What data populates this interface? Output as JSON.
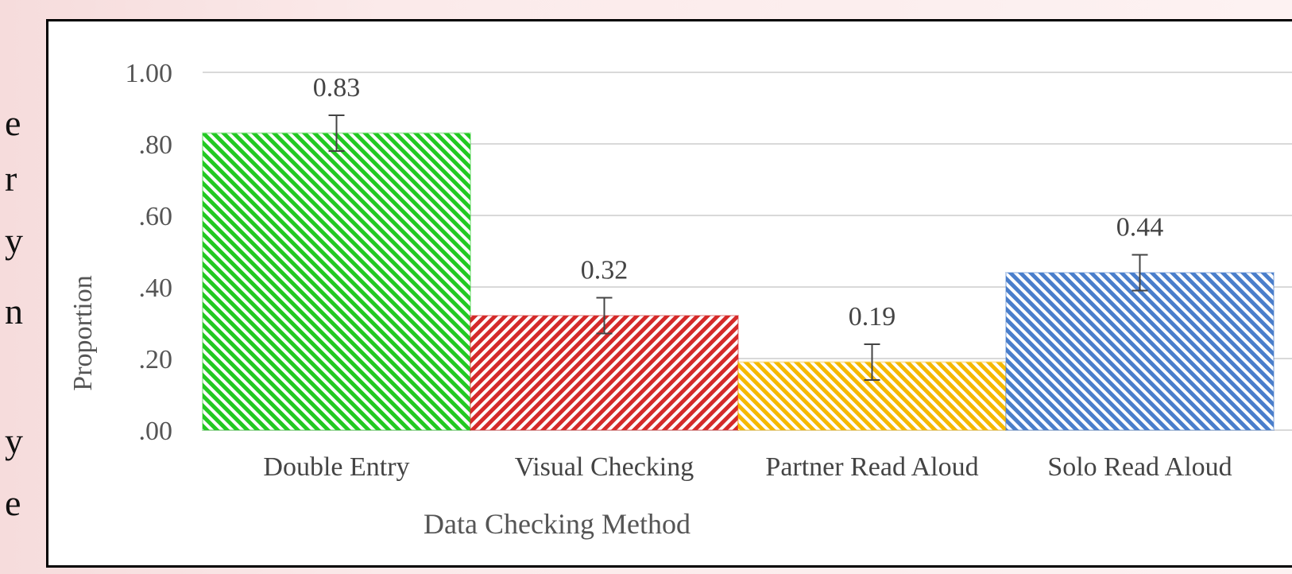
{
  "side_text": [
    "e",
    "r",
    "y",
    "n",
    "y",
    "e"
  ],
  "chart_data": {
    "type": "bar",
    "xlabel": "Data Checking Method",
    "ylabel": "Proportion",
    "categories": [
      "Double Entry",
      "Visual Checking",
      "Partner Read Aloud",
      "Solo Read Aloud"
    ],
    "values": [
      0.83,
      0.32,
      0.19,
      0.44
    ],
    "value_labels": [
      "0.83",
      "0.32",
      "0.19",
      "0.44"
    ],
    "error_bars": [
      0.05,
      0.05,
      0.05,
      0.05
    ],
    "ylim": [
      0,
      1
    ],
    "yticks": [
      0,
      0.2,
      0.4,
      0.6,
      0.8,
      1.0
    ],
    "ytick_labels": [
      ".00",
      ".20",
      ".40",
      ".60",
      ".80",
      "1.00"
    ],
    "colors": [
      "#22c922",
      "#d42a2a",
      "#f5b800",
      "#4a7ecb"
    ],
    "grid": true,
    "bar_fill": "diagonal hatch"
  }
}
